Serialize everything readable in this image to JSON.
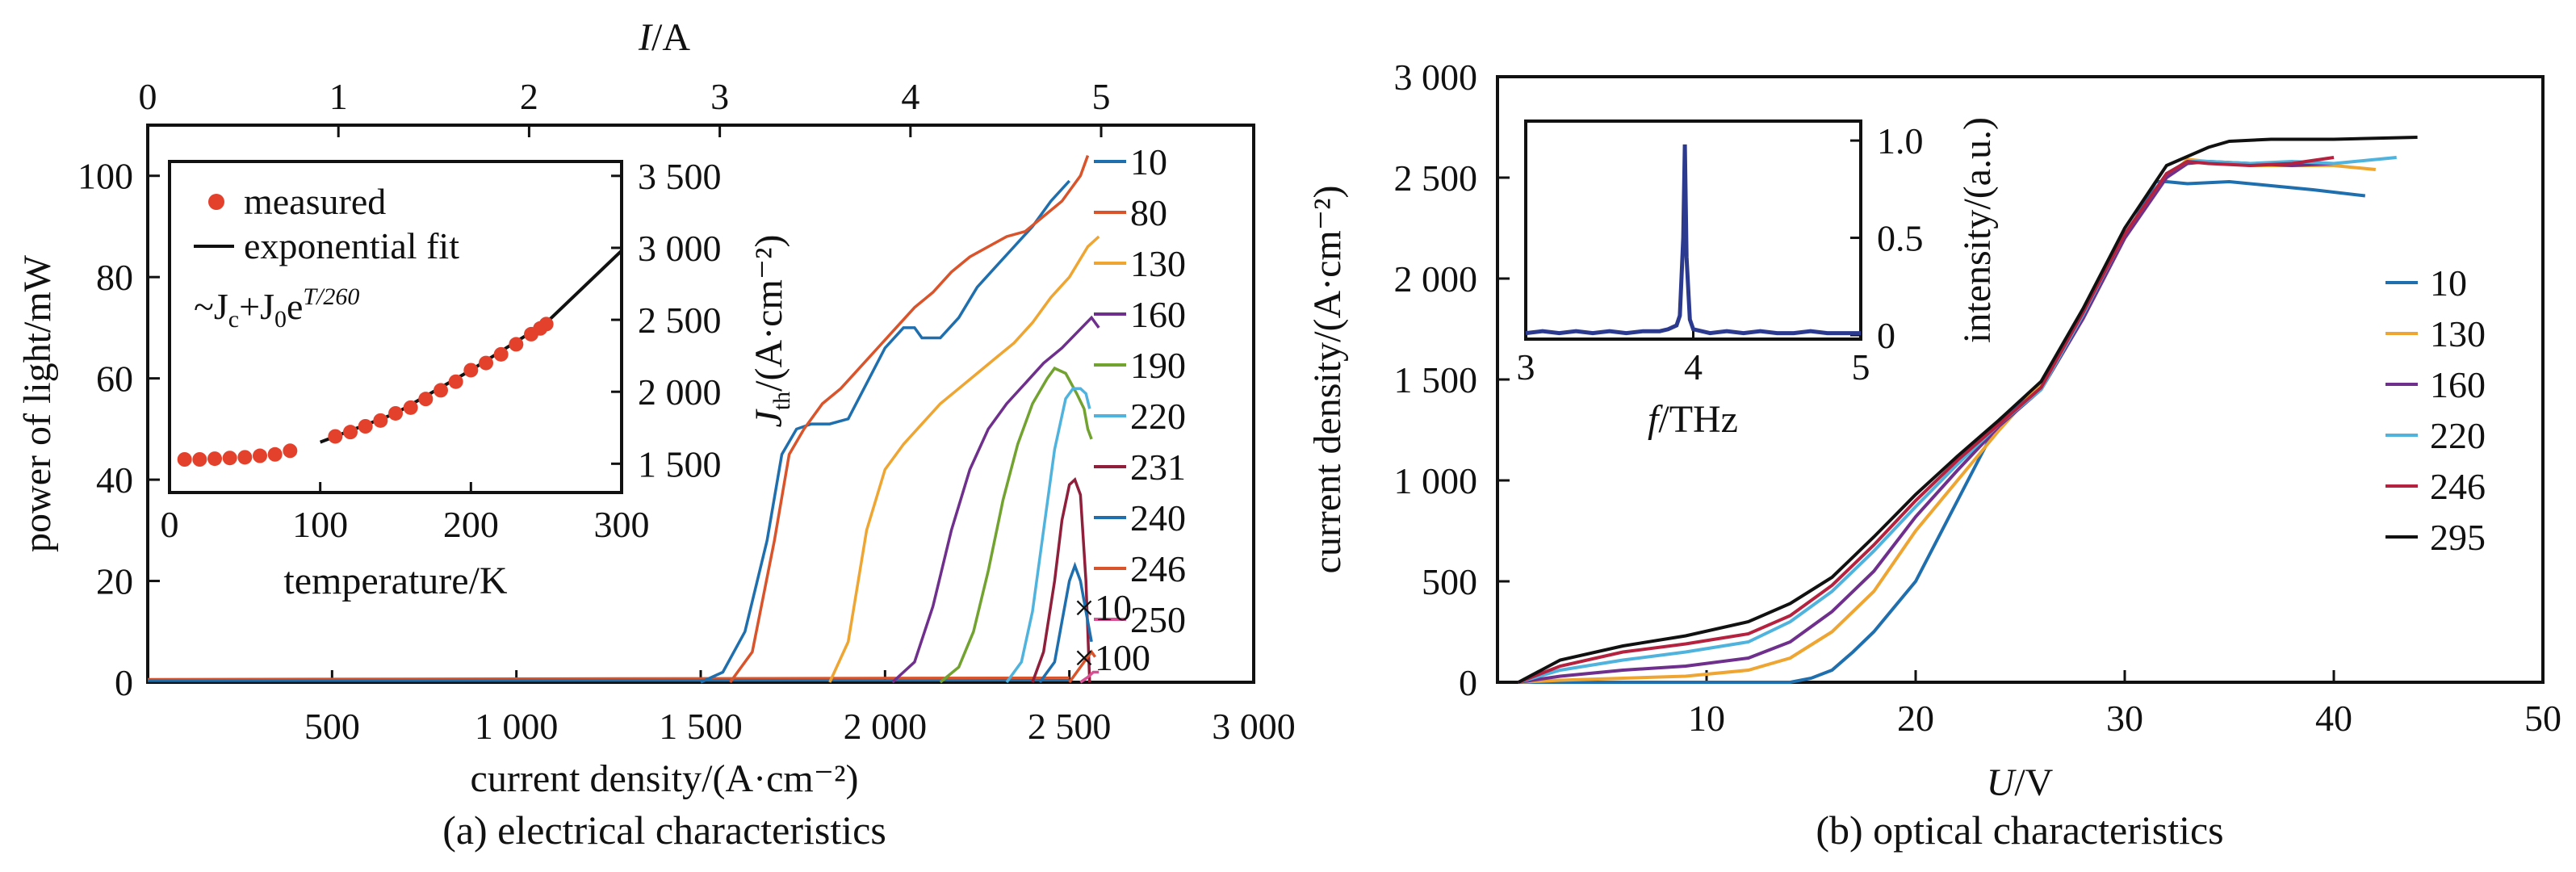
{
  "panel_a": {
    "caption": "(a) electrical characteristics",
    "xlabel": "current density/(A·cm⁻²)",
    "ylabel": "power of light/mW",
    "top_axis_label_italic": "I",
    "top_axis_label_unit": "/A",
    "multiplier_x10": "×10",
    "multiplier_x100": "×100",
    "bottom_ticks": [
      "500",
      "1 000",
      "1 500",
      "2 000",
      "2 500",
      "3 000"
    ],
    "left_ticks": [
      "0",
      "20",
      "40",
      "60",
      "80",
      "100"
    ],
    "top_ticks": [
      "0",
      "1",
      "2",
      "3",
      "4",
      "5"
    ],
    "inset": {
      "legend_measured": "measured",
      "legend_fit": "exponential fit",
      "formula_prefix": "~J",
      "formula_c": "c",
      "formula_plus": "+J",
      "formula_0": "0",
      "formula_e": "e",
      "formula_exp": "T/260",
      "xlabel": "temperature/K",
      "ylabel_J": "J",
      "ylabel_sub": "th",
      "ylabel_unit": "/(A·cm⁻²)",
      "x_ticks": [
        "0",
        "100",
        "200",
        "300"
      ],
      "y_ticks": [
        "1 500",
        "2 000",
        "2 500",
        "3 000",
        "3 500"
      ]
    }
  },
  "panel_b": {
    "caption": "(b) optical characteristics",
    "xlabel_italic": "U",
    "xlabel_unit": "/V",
    "ylabel": "current density/(A·cm⁻²)",
    "x_ticks": [
      "10",
      "20",
      "30",
      "40",
      "50"
    ],
    "y_ticks": [
      "0",
      "500",
      "1 000",
      "1 500",
      "2 000",
      "2 500",
      "3 000"
    ],
    "inset": {
      "xlabel_italic": "f",
      "xlabel_unit": "/THz",
      "ylabel": "intensity/(a.u.)",
      "x_ticks": [
        "3",
        "4",
        "5"
      ],
      "y_ticks": [
        "0",
        "0.5",
        "1.0"
      ]
    }
  },
  "colors": {
    "10": "#1f6fae",
    "80": "#d9532b",
    "130": "#eea531",
    "160": "#6f2f8c",
    "190": "#72a22f",
    "220": "#4fb3dd",
    "231": "#8f1f3a",
    "240": "#1f6fae",
    "246": "#d9532b",
    "246b": "#b5223f",
    "250": "#d94f93",
    "295": "#111111",
    "measured": "#e4412d",
    "spectrum": "#2b3a8f",
    "x10": "#d9532b",
    "x100": "#d94f93"
  },
  "chart_data": [
    {
      "type": "line",
      "title": "(a) electrical characteristics",
      "xlabel": "current density/(A·cm⁻²)",
      "ylabel": "power of light/mW",
      "top_xlabel": "I/A",
      "xlim": [
        0,
        3000
      ],
      "ylim": [
        0,
        110
      ],
      "top_xlim": [
        0,
        5.8
      ],
      "legend": "right, outside plot",
      "series": [
        {
          "name": "10",
          "x": [
            1500,
            1560,
            1620,
            1680,
            1720,
            1760,
            1800,
            1850,
            1900,
            1950,
            2000,
            2050,
            2080,
            2100,
            2150,
            2200,
            2250,
            2300,
            2350,
            2400,
            2450,
            2500
          ],
          "y": [
            0,
            2,
            10,
            28,
            45,
            50,
            51,
            51,
            52,
            59,
            66,
            70,
            70,
            68,
            68,
            72,
            78,
            82,
            86,
            90,
            95,
            99
          ]
        },
        {
          "name": "80",
          "x": [
            1580,
            1640,
            1700,
            1740,
            1780,
            1830,
            1880,
            1930,
            1980,
            2030,
            2080,
            2130,
            2180,
            2230,
            2280,
            2330,
            2380,
            2430,
            2480,
            2530,
            2550
          ],
          "y": [
            0,
            6,
            28,
            45,
            50,
            55,
            58,
            62,
            66,
            70,
            74,
            77,
            81,
            84,
            86,
            88,
            89,
            92,
            95,
            100,
            104
          ]
        },
        {
          "name": "130",
          "x": [
            1850,
            1900,
            1950,
            2000,
            2050,
            2100,
            2150,
            2200,
            2250,
            2300,
            2350,
            2400,
            2450,
            2500,
            2550,
            2580
          ],
          "y": [
            0,
            8,
            30,
            42,
            47,
            51,
            55,
            58,
            61,
            64,
            67,
            71,
            76,
            80,
            86,
            88
          ]
        },
        {
          "name": "160",
          "x": [
            2020,
            2080,
            2130,
            2180,
            2230,
            2280,
            2330,
            2380,
            2430,
            2480,
            2520,
            2560,
            2580
          ],
          "y": [
            0,
            4,
            15,
            30,
            42,
            50,
            55,
            59,
            63,
            66,
            69,
            72,
            70
          ]
        },
        {
          "name": "190",
          "x": [
            2150,
            2200,
            2240,
            2280,
            2320,
            2360,
            2400,
            2440,
            2460,
            2490,
            2520,
            2540,
            2550,
            2560
          ],
          "y": [
            0,
            3,
            10,
            22,
            36,
            47,
            55,
            60,
            62,
            61,
            57,
            54,
            50,
            48
          ]
        },
        {
          "name": "220",
          "x": [
            2330,
            2370,
            2400,
            2430,
            2460,
            2490,
            2510,
            2530,
            2545,
            2555
          ],
          "y": [
            0,
            4,
            14,
            30,
            46,
            56,
            58,
            58,
            57,
            54
          ]
        },
        {
          "name": "231",
          "x": [
            2400,
            2430,
            2460,
            2480,
            2500,
            2515,
            2530,
            2545,
            2555
          ],
          "y": [
            0,
            6,
            20,
            32,
            39,
            40,
            37,
            20,
            0
          ]
        },
        {
          "name": "240",
          "x": [
            2420,
            2460,
            2480,
            2500,
            2515,
            2530,
            2545,
            2560
          ],
          "y": [
            0,
            4,
            12,
            20,
            23,
            20,
            14,
            8
          ]
        },
        {
          "name": "246",
          "x": [
            2500,
            2520,
            2540,
            2560,
            2570
          ],
          "y": [
            0,
            2,
            4,
            6,
            5
          ]
        },
        {
          "name": "250",
          "x": [
            2530,
            2550,
            2565,
            2580
          ],
          "y": [
            0,
            1,
            2,
            2
          ]
        }
      ],
      "inset": {
        "type": "scatter",
        "xlabel": "temperature/K",
        "ylabel": "J_th/(A·cm⁻²)",
        "xlim": [
          0,
          300
        ],
        "ylim": [
          1300,
          3600
        ],
        "measured": {
          "x": [
            10,
            20,
            30,
            40,
            50,
            60,
            70,
            80,
            110,
            120,
            130,
            140,
            150,
            160,
            170,
            180,
            190,
            200,
            210,
            220,
            230,
            240,
            246,
            250
          ],
          "y": [
            1530,
            1530,
            1535,
            1540,
            1545,
            1555,
            1565,
            1590,
            1690,
            1720,
            1760,
            1800,
            1850,
            1890,
            1950,
            2010,
            2070,
            2150,
            2200,
            2260,
            2330,
            2400,
            2440,
            2470
          ]
        },
        "fit": {
          "x": [
            100,
            150,
            200,
            250,
            300
          ],
          "y": [
            1650,
            1850,
            2150,
            2480,
            2980
          ]
        },
        "annotation": "~J_c+J_0e^(T/260)"
      }
    },
    {
      "type": "line",
      "title": "(b) optical characteristics",
      "xlabel": "U/V",
      "ylabel": "current density/(A·cm⁻²)",
      "xlim": [
        0,
        50
      ],
      "ylim": [
        0,
        3000
      ],
      "legend": "right",
      "series": [
        {
          "name": "10",
          "x": [
            1,
            5,
            8,
            10,
            12,
            14,
            15,
            16,
            17,
            18,
            20,
            22,
            24,
            26,
            28,
            30,
            31.5,
            32,
            33,
            35,
            37,
            39,
            41.5
          ],
          "y": [
            0,
            0,
            0,
            0,
            0,
            0,
            20,
            60,
            150,
            250,
            500,
            900,
            1300,
            1480,
            1800,
            2200,
            2480,
            2480,
            2470,
            2480,
            2460,
            2440,
            2410
          ]
        },
        {
          "name": "130",
          "x": [
            1,
            3,
            6,
            9,
            12,
            14,
            16,
            18,
            20,
            22,
            24,
            26,
            28,
            30,
            32,
            33,
            34,
            36,
            38,
            40,
            42
          ],
          "y": [
            0,
            10,
            20,
            30,
            60,
            120,
            250,
            450,
            750,
            1000,
            1250,
            1480,
            1800,
            2200,
            2500,
            2590,
            2580,
            2560,
            2560,
            2560,
            2540
          ]
        },
        {
          "name": "160",
          "x": [
            1,
            3,
            6,
            9,
            12,
            14,
            16,
            18,
            20,
            22,
            24,
            26,
            28,
            30,
            32,
            33,
            34,
            36,
            38,
            40
          ],
          "y": [
            0,
            30,
            60,
            80,
            120,
            200,
            350,
            550,
            820,
            1050,
            1270,
            1450,
            1800,
            2200,
            2500,
            2570,
            2580,
            2570,
            2560,
            2570
          ]
        },
        {
          "name": "220",
          "x": [
            1,
            3,
            6,
            9,
            12,
            14,
            16,
            18,
            20,
            22,
            24,
            26,
            28,
            30,
            32,
            33,
            34,
            36,
            38,
            40,
            43
          ],
          "y": [
            0,
            60,
            110,
            150,
            200,
            300,
            450,
            650,
            870,
            1080,
            1280,
            1450,
            1820,
            2220,
            2520,
            2580,
            2580,
            2570,
            2580,
            2570,
            2600
          ]
        },
        {
          "name": "246",
          "x": [
            1,
            3,
            6,
            9,
            12,
            14,
            16,
            18,
            20,
            22,
            24,
            26,
            28,
            30,
            32,
            33,
            34,
            36,
            38,
            40
          ],
          "y": [
            0,
            80,
            150,
            190,
            240,
            330,
            480,
            680,
            900,
            1100,
            1280,
            1460,
            1830,
            2220,
            2520,
            2580,
            2570,
            2560,
            2570,
            2600
          ]
        },
        {
          "name": "295",
          "x": [
            1,
            3,
            6,
            9,
            12,
            14,
            16,
            18,
            20,
            22,
            24,
            26,
            28,
            30,
            32,
            34,
            35,
            37,
            40,
            44
          ],
          "y": [
            0,
            110,
            180,
            230,
            300,
            390,
            520,
            720,
            930,
            1120,
            1300,
            1490,
            1850,
            2250,
            2560,
            2650,
            2680,
            2690,
            2690,
            2700
          ]
        }
      ],
      "inset": {
        "type": "line",
        "xlabel": "f/THz",
        "ylabel": "intensity/(a.u.)",
        "xlim": [
          3,
          5
        ],
        "ylim": [
          0,
          1.1
        ],
        "x": [
          3.0,
          3.1,
          3.2,
          3.3,
          3.4,
          3.5,
          3.6,
          3.7,
          3.8,
          3.85,
          3.9,
          3.92,
          3.94,
          3.95,
          3.96,
          3.98,
          4.0,
          4.05,
          4.1,
          4.2,
          4.3,
          4.4,
          4.5,
          4.6,
          4.7,
          4.8,
          4.9,
          5.0
        ],
        "y": [
          0.01,
          0.02,
          0.01,
          0.02,
          0.01,
          0.02,
          0.01,
          0.02,
          0.02,
          0.03,
          0.05,
          0.1,
          0.5,
          0.98,
          0.4,
          0.08,
          0.03,
          0.02,
          0.01,
          0.02,
          0.01,
          0.02,
          0.01,
          0.01,
          0.02,
          0.01,
          0.01,
          0.01
        ]
      }
    }
  ]
}
